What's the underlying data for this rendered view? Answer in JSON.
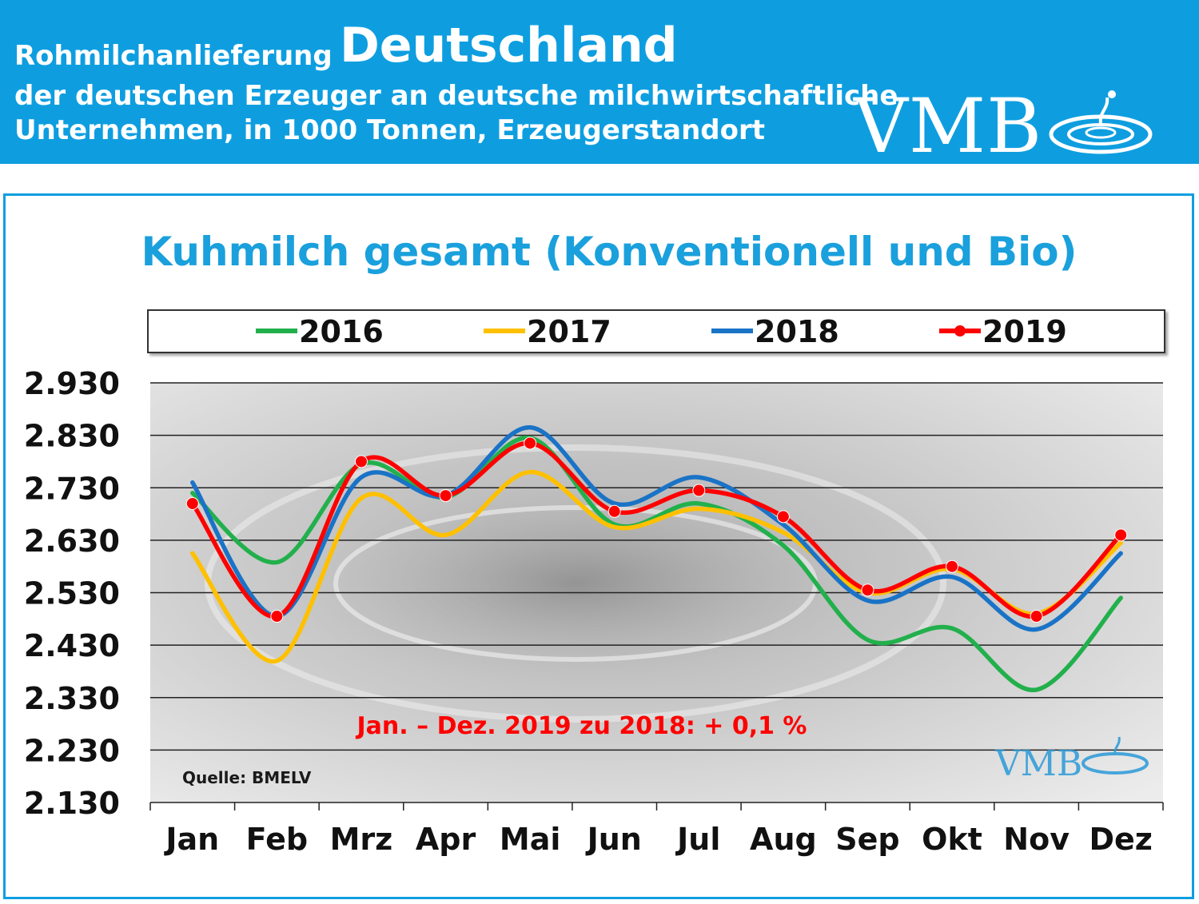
{
  "header": {
    "prefix": "Rohmilchanlieferung",
    "country": "Deutschland",
    "line2": "der deutschen Erzeuger an deutsche milchwirtschaftliche",
    "line3": "Unternehmen, in 1000 Tonnen, Erzeugerstandort",
    "logo_text": "VMB"
  },
  "colors": {
    "header_bg": "#0e9ee0",
    "title": "#1aa0dc",
    "annotation": "#ff0000"
  },
  "chart_data": {
    "type": "line",
    "title": "Kuhmilch gesamt (Konventionell und Bio)",
    "categories": [
      "Jan",
      "Feb",
      "Mrz",
      "Apr",
      "Mai",
      "Jun",
      "Jul",
      "Aug",
      "Sep",
      "Okt",
      "Nov",
      "Dez"
    ],
    "ylim": [
      2130,
      2930
    ],
    "yticks": [
      "2.930",
      "2.830",
      "2.730",
      "2.630",
      "2.530",
      "2.430",
      "2.330",
      "2.230",
      "2.130"
    ],
    "grid": true,
    "legend": "top",
    "series": [
      {
        "name": "2016",
        "color": "#22b04c",
        "markers": false,
        "values": [
          2720,
          2588,
          2775,
          2712,
          2825,
          2660,
          2700,
          2620,
          2440,
          2462,
          2345,
          2520
        ]
      },
      {
        "name": "2017",
        "color": "#ffc000",
        "markers": false,
        "values": [
          2605,
          2400,
          2710,
          2640,
          2760,
          2655,
          2690,
          2645,
          2530,
          2575,
          2490,
          2625
        ]
      },
      {
        "name": "2018",
        "color": "#1a73c6",
        "markers": false,
        "values": [
          2740,
          2485,
          2750,
          2715,
          2845,
          2700,
          2750,
          2660,
          2515,
          2560,
          2460,
          2605
        ]
      },
      {
        "name": "2019",
        "color": "#ff0000",
        "markers": true,
        "values": [
          2700,
          2485,
          2780,
          2715,
          2815,
          2685,
          2725,
          2675,
          2535,
          2580,
          2485,
          2640
        ]
      }
    ],
    "annotation": "Jan. – Dez.  2019 zu 2018:  + 0,1 %",
    "source": "Quelle: BMELV",
    "watermark_logo_text": "VMB"
  }
}
